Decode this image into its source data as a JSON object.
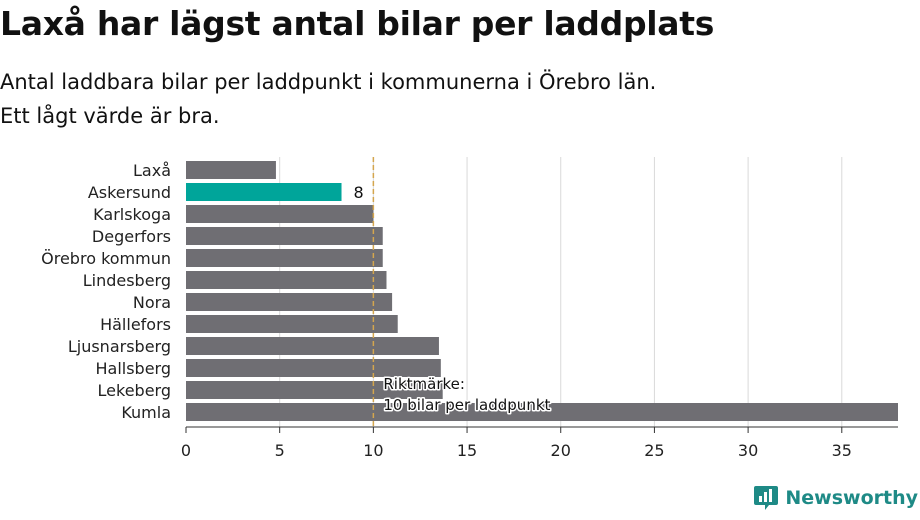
{
  "title": "Laxå har lägst antal bilar per laddplats",
  "subtitle_line1": "Antal laddbara bilar per laddpunkt i kommunerna i Örebro län.",
  "subtitle_line2": "Ett lågt värde är bra.",
  "logo_text": "Newsworthy",
  "colors": {
    "bar": "#6f6e73",
    "highlight": "#00a59a",
    "reference": "#d4a64e",
    "grid": "#d9d9d9",
    "brand": "#1e8a86"
  },
  "chart_data": {
    "type": "bar",
    "orientation": "horizontal",
    "categories": [
      "Laxå",
      "Askersund",
      "Karlskoga",
      "Degerfors",
      "Örebro kommun",
      "Lindesberg",
      "Nora",
      "Hällefors",
      "Ljusnarsberg",
      "Hallsberg",
      "Lekeberg",
      "Kumla"
    ],
    "values": [
      4.8,
      8.3,
      10.0,
      10.5,
      10.5,
      10.7,
      11.0,
      11.3,
      13.5,
      13.6,
      13.7,
      38.0
    ],
    "highlight": "Askersund",
    "highlight_label": "8",
    "xlim": [
      0,
      38
    ],
    "xticks": [
      0,
      5,
      10,
      15,
      20,
      25,
      30,
      35
    ],
    "reference_line": {
      "value": 10,
      "label_line1": "Riktmärke:",
      "label_line2": "10 bilar per laddpunkt"
    },
    "grid": true
  }
}
